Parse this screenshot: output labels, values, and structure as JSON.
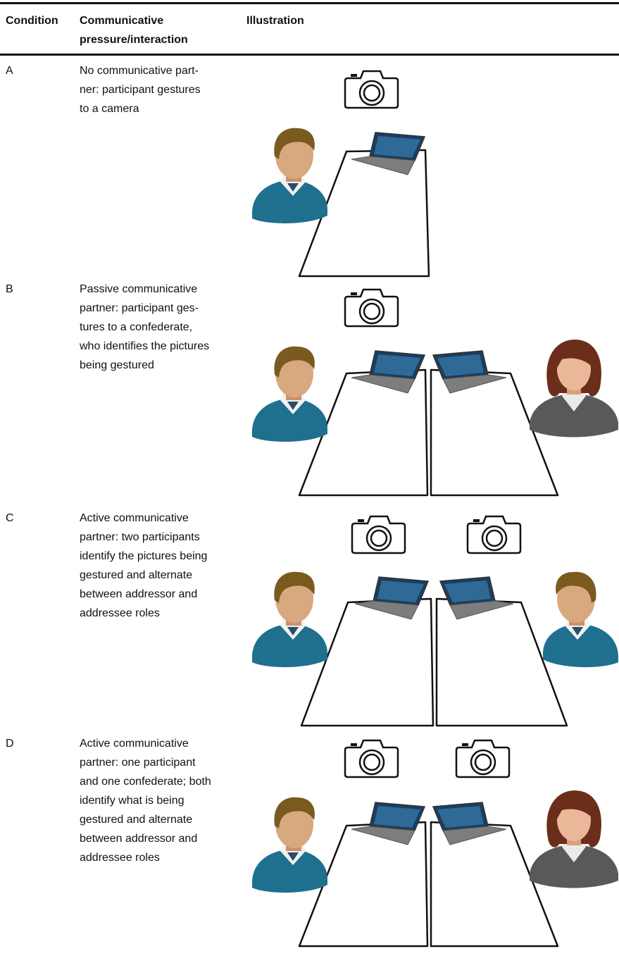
{
  "header": {
    "condition": "Condition",
    "interaction": [
      "Communicative",
      "pressure/interaction"
    ],
    "illustration": "Illustration"
  },
  "rows": [
    {
      "condition": "A",
      "interaction": [
        "No communicative part-",
        "ner: participant gestures",
        "to a camera"
      ]
    },
    {
      "condition": "B",
      "interaction": [
        "Passive communicative",
        "partner: participant ges-",
        "tures to a confederate,",
        "who identifies the pictures",
        "being gestured"
      ]
    },
    {
      "condition": "C",
      "interaction": [
        "Active communicative",
        "partner: two participants",
        "identify the pictures being",
        "gestured and alternate",
        "between addressor and",
        "addressee roles"
      ]
    },
    {
      "condition": "D",
      "interaction": [
        "Active communicative",
        "partner: one participant",
        "and one confederate; both",
        "identify what is being",
        "gestured and alternate",
        "between addressor and",
        "addressee roles"
      ]
    }
  ]
}
